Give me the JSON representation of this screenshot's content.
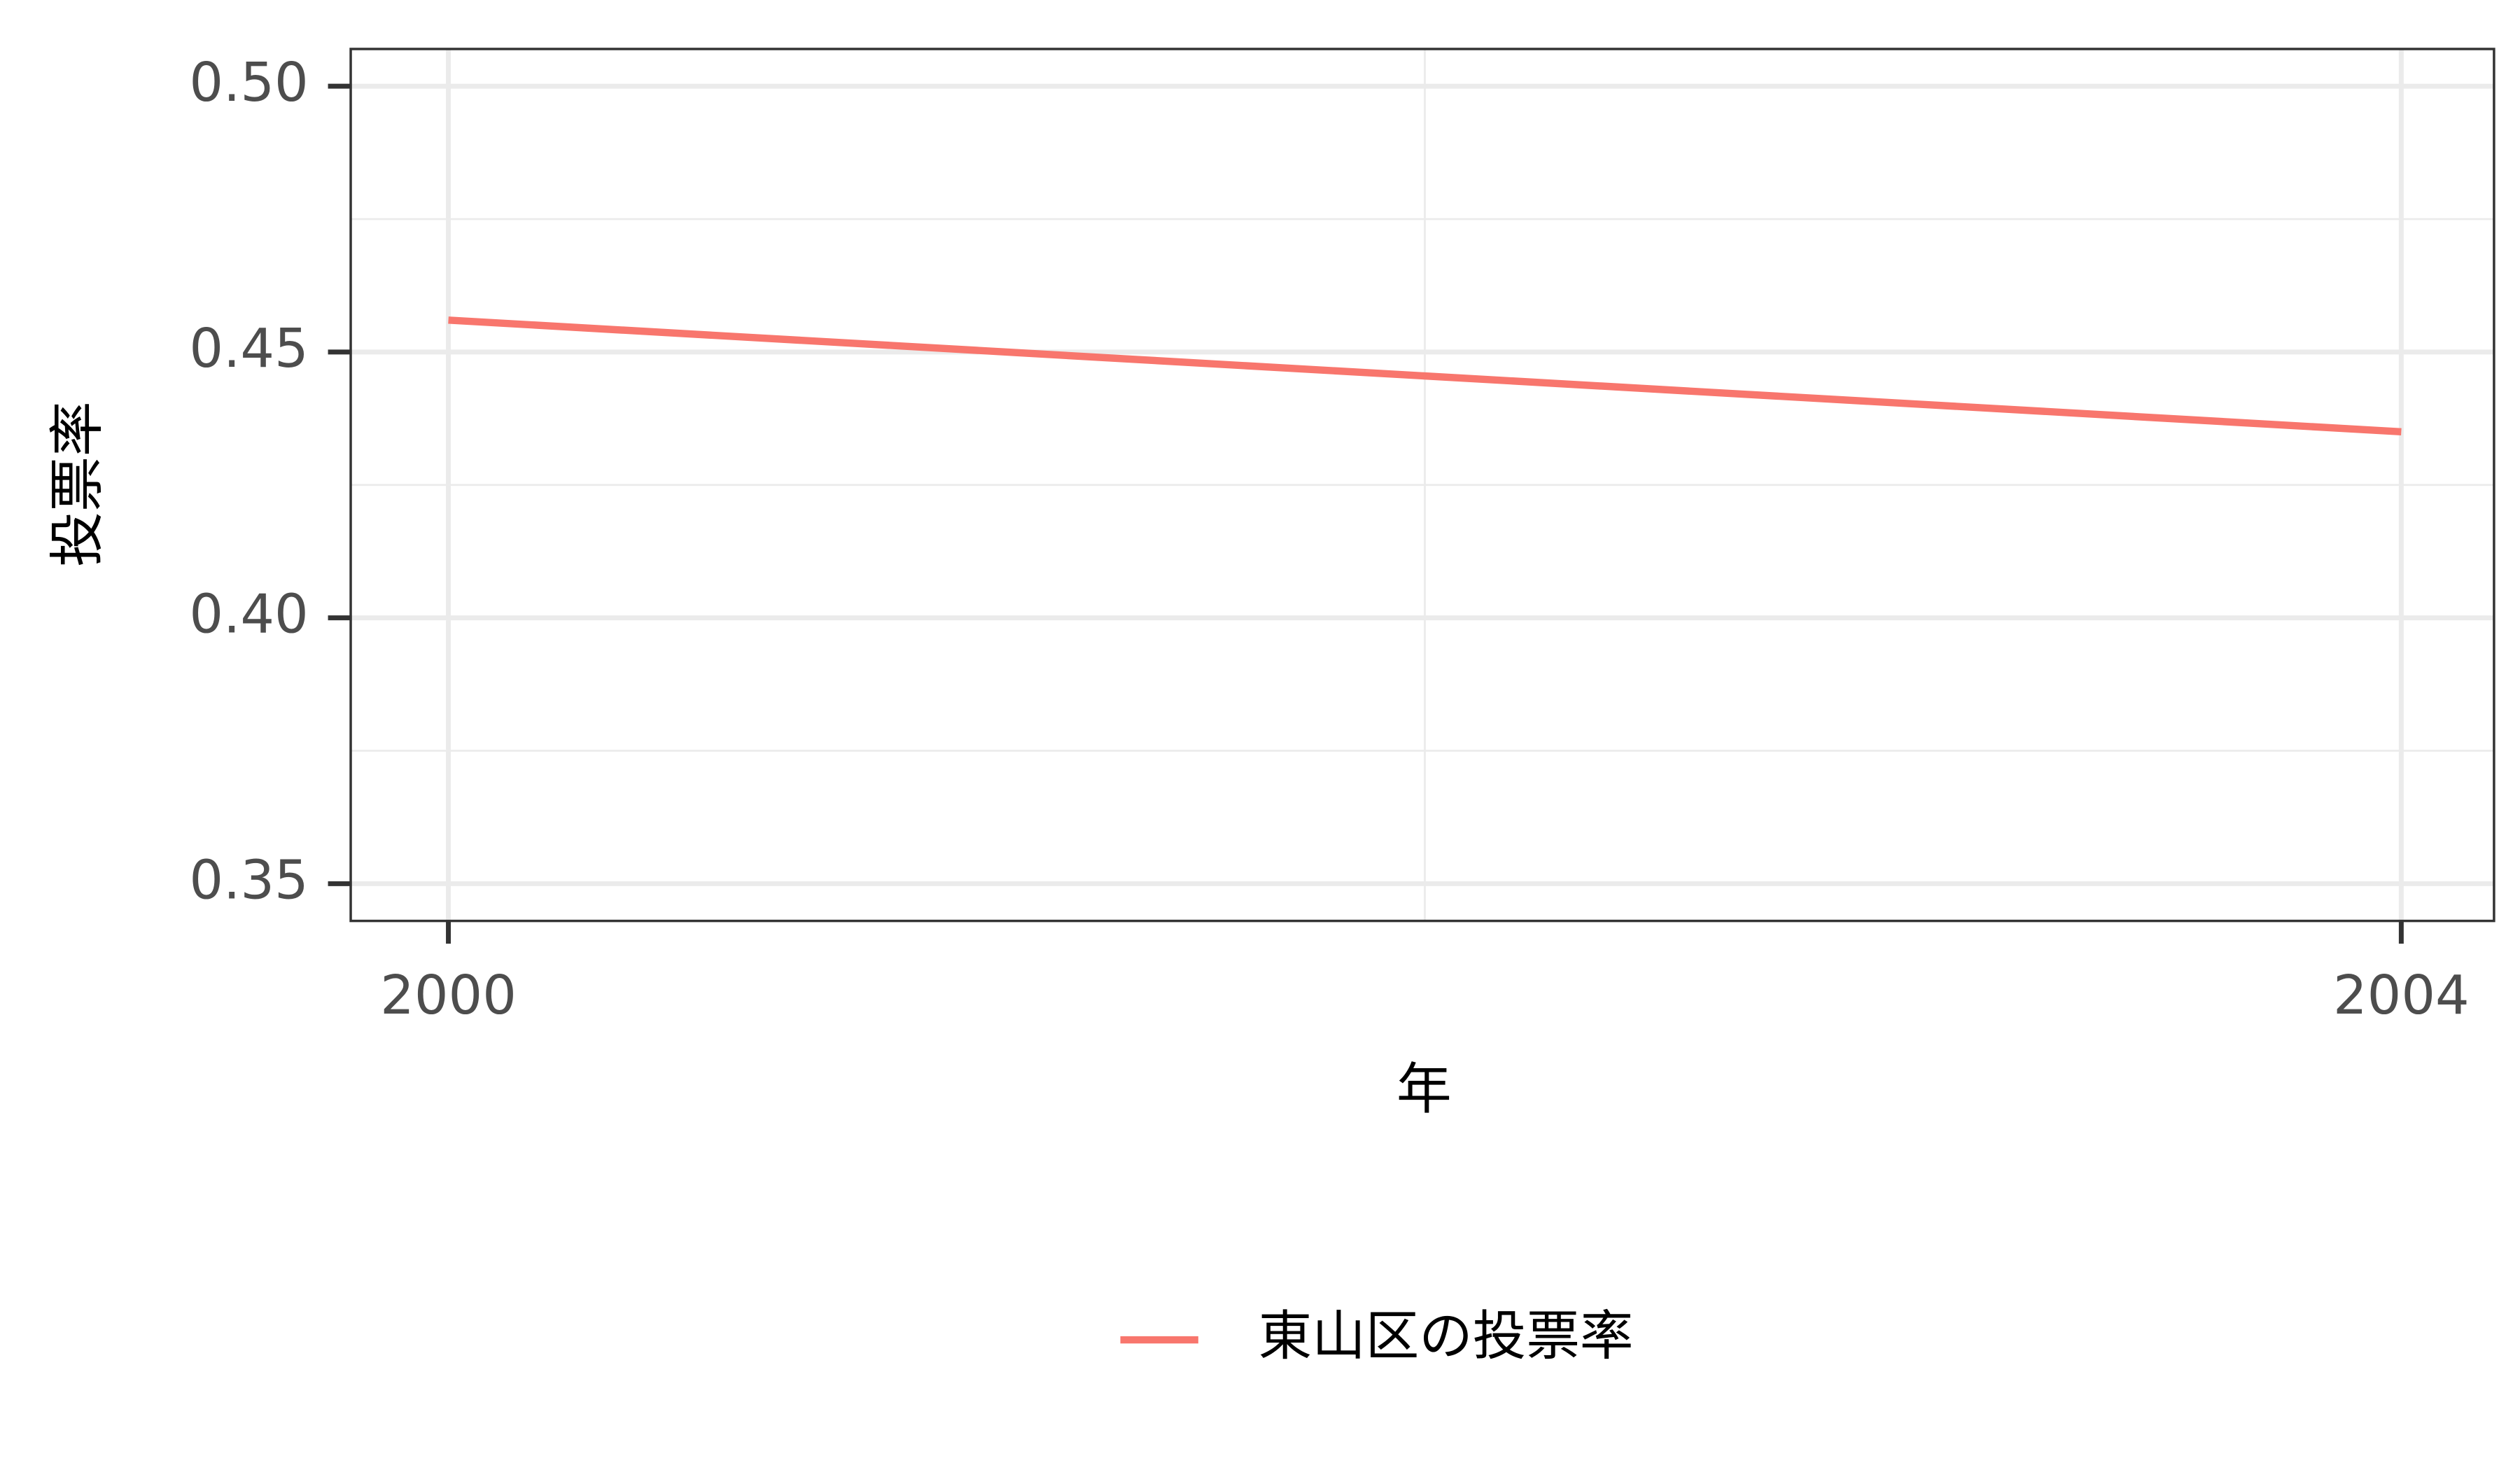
{
  "chart_data": {
    "type": "line",
    "x_label": "年",
    "y_label": "投票率",
    "x": [
      2000,
      2004
    ],
    "series": [
      {
        "name": "東山区の投票率",
        "color": "#F8766D",
        "values": [
          0.456,
          0.435
        ]
      }
    ],
    "xlim": [
      1999.8,
      2004.19
    ],
    "xticks": [
      2000,
      2004
    ],
    "ylim": [
      0.343,
      0.507
    ],
    "yticks": [
      {
        "value": 0.35,
        "label": "0.35"
      },
      {
        "value": 0.4,
        "label": "0.40"
      },
      {
        "value": 0.45,
        "label": "0.45"
      },
      {
        "value": 0.5,
        "label": "0.50"
      }
    ],
    "grid": true,
    "minor_grid": true,
    "legend": "bottom"
  }
}
